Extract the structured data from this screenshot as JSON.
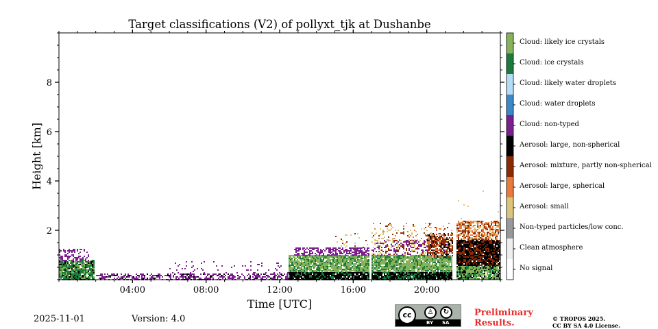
{
  "chart_data": {
    "type": "heatmap",
    "title": "Target classifications (V2) of pollyxt_tjk at Dushanbe",
    "xlabel": "Time [UTC]",
    "ylabel": "Height [km]",
    "xlim_hours": [
      0,
      24
    ],
    "ylim_km": [
      0,
      10
    ],
    "x_ticks": [
      {
        "hour": 4,
        "label": "04:00"
      },
      {
        "hour": 8,
        "label": "08:00"
      },
      {
        "hour": 12,
        "label": "12:00"
      },
      {
        "hour": 16,
        "label": "16:00"
      },
      {
        "hour": 20,
        "label": "20:00"
      }
    ],
    "y_ticks": [
      {
        "km": 2,
        "label": "2"
      },
      {
        "km": 4,
        "label": "4"
      },
      {
        "km": 6,
        "label": "6"
      },
      {
        "km": 8,
        "label": "8"
      }
    ],
    "classes": [
      {
        "label": "Cloud: likely ice crystals",
        "color": "#86b25a"
      },
      {
        "label": "Cloud: ice crystals",
        "color": "#1b7a3c"
      },
      {
        "label": "Cloud: likely water droplets",
        "color": "#b5dcf5"
      },
      {
        "label": "Cloud: water droplets",
        "color": "#3a88c8"
      },
      {
        "label": "Cloud: non-typed",
        "color": "#7b1e8e"
      },
      {
        "label": "Aerosol: large, non-spherical",
        "color": "#000000"
      },
      {
        "label": "Aerosol: mixture, partly non-spherical",
        "color": "#8a2a05"
      },
      {
        "label": "Aerosol: large, spherical",
        "color": "#e87a3c"
      },
      {
        "label": "Aerosol: small",
        "color": "#dcc47a"
      },
      {
        "label": "Non-typed particles/low conc.",
        "color": "#999999"
      },
      {
        "label": "Clean atmosphere",
        "color": "#eeeeee"
      },
      {
        "label": "No signal",
        "color": "#ffffff"
      }
    ],
    "regions": [
      {
        "t0": 0.0,
        "t1": 1.9,
        "h0": 0.0,
        "h1": 0.8,
        "classes": [
          1,
          0,
          5
        ],
        "weights": [
          0.55,
          0.3,
          0.15
        ],
        "density": 0.9
      },
      {
        "t0": 0.0,
        "t1": 1.6,
        "h0": 0.75,
        "h1": 1.25,
        "classes": [
          4
        ],
        "weights": [
          1
        ],
        "density": 0.4
      },
      {
        "t0": 2.0,
        "t1": 12.5,
        "h0": 0.0,
        "h1": 0.25,
        "classes": [
          4,
          5
        ],
        "weights": [
          0.8,
          0.2
        ],
        "density": 0.5
      },
      {
        "t0": 6.0,
        "t1": 12.5,
        "h0": 0.25,
        "h1": 0.75,
        "classes": [
          4
        ],
        "weights": [
          1
        ],
        "density": 0.08
      },
      {
        "t0": 12.5,
        "t1": 16.9,
        "h0": 0.3,
        "h1": 1.0,
        "classes": [
          0,
          1
        ],
        "weights": [
          0.7,
          0.3
        ],
        "density": 0.9
      },
      {
        "t0": 12.5,
        "t1": 16.9,
        "h0": 0.0,
        "h1": 0.3,
        "classes": [
          5,
          1
        ],
        "weights": [
          0.7,
          0.3
        ],
        "density": 0.95
      },
      {
        "t0": 12.8,
        "t1": 16.9,
        "h0": 1.0,
        "h1": 1.3,
        "classes": [
          4
        ],
        "weights": [
          1
        ],
        "density": 0.55
      },
      {
        "t0": 15.0,
        "t1": 16.9,
        "h0": 1.3,
        "h1": 1.9,
        "classes": [
          8,
          6
        ],
        "weights": [
          0.6,
          0.4
        ],
        "density": 0.12
      },
      {
        "t0": 17.0,
        "t1": 21.4,
        "h0": 0.3,
        "h1": 1.0,
        "classes": [
          0,
          1
        ],
        "weights": [
          0.7,
          0.3
        ],
        "density": 0.9
      },
      {
        "t0": 17.0,
        "t1": 21.4,
        "h0": 0.0,
        "h1": 0.3,
        "classes": [
          5,
          1
        ],
        "weights": [
          0.7,
          0.3
        ],
        "density": 0.95
      },
      {
        "t0": 17.0,
        "t1": 21.4,
        "h0": 1.0,
        "h1": 1.6,
        "classes": [
          4,
          8,
          6
        ],
        "weights": [
          0.4,
          0.35,
          0.25
        ],
        "density": 0.45
      },
      {
        "t0": 17.0,
        "t1": 21.4,
        "h0": 1.6,
        "h1": 2.3,
        "classes": [
          8,
          6,
          7
        ],
        "weights": [
          0.5,
          0.3,
          0.2
        ],
        "density": 0.15
      },
      {
        "t0": 20.0,
        "t1": 21.4,
        "h0": 0.9,
        "h1": 1.9,
        "classes": [
          6,
          7,
          5
        ],
        "weights": [
          0.5,
          0.3,
          0.2
        ],
        "density": 0.6
      },
      {
        "t0": 21.6,
        "t1": 24.0,
        "h0": 0.0,
        "h1": 0.55,
        "classes": [
          0,
          1,
          5
        ],
        "weights": [
          0.5,
          0.3,
          0.2
        ],
        "density": 0.95
      },
      {
        "t0": 21.6,
        "t1": 24.0,
        "h0": 0.55,
        "h1": 1.6,
        "classes": [
          5,
          6
        ],
        "weights": [
          0.6,
          0.4
        ],
        "density": 0.95
      },
      {
        "t0": 21.6,
        "t1": 24.0,
        "h0": 1.6,
        "h1": 2.4,
        "classes": [
          7,
          6,
          8
        ],
        "weights": [
          0.45,
          0.35,
          0.2
        ],
        "density": 0.7
      },
      {
        "t0": 21.6,
        "t1": 24.0,
        "h0": 2.4,
        "h1": 4.0,
        "classes": [
          8
        ],
        "weights": [
          1
        ],
        "density": 0.01
      }
    ],
    "gaps_hours": [
      [
        16.9,
        17.0
      ],
      [
        21.4,
        21.6
      ]
    ]
  },
  "footer": {
    "date": "2025-11-01",
    "version": "Version: 4.0",
    "license_badge": {
      "cc": "cc",
      "by": "BY",
      "sa": "SA"
    },
    "preliminary_line1": "Preliminary",
    "preliminary_line2": "Results.",
    "copyright_line1": "© TROPOS 2025.",
    "copyright_line2": "CC BY SA 4.0 License."
  },
  "colors": {
    "preliminary": "#e8302e"
  }
}
